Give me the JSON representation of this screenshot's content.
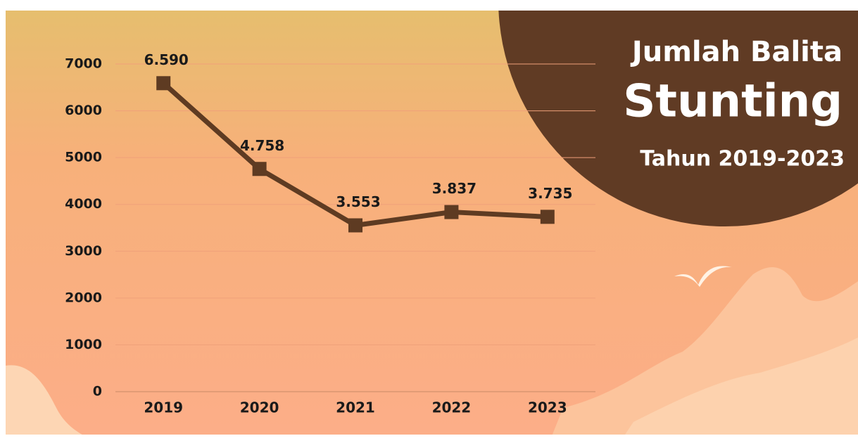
{
  "chart_data": {
    "type": "line",
    "title": "Jumlah Balita",
    "title_emphasis": "Stunting",
    "subtitle": "Tahun 2019-2023",
    "categories": [
      "2019",
      "2020",
      "2021",
      "2022",
      "2023"
    ],
    "values": [
      6590,
      4758,
      3553,
      3837,
      3735
    ],
    "value_labels": [
      "6.590",
      "4.758",
      "3.553",
      "3.837",
      "3.735"
    ],
    "color": "#5e3b22",
    "ylim": [
      0,
      7000
    ],
    "yticks": [
      0,
      1000,
      2000,
      3000,
      4000,
      5000,
      6000,
      7000
    ],
    "grid": true
  }
}
